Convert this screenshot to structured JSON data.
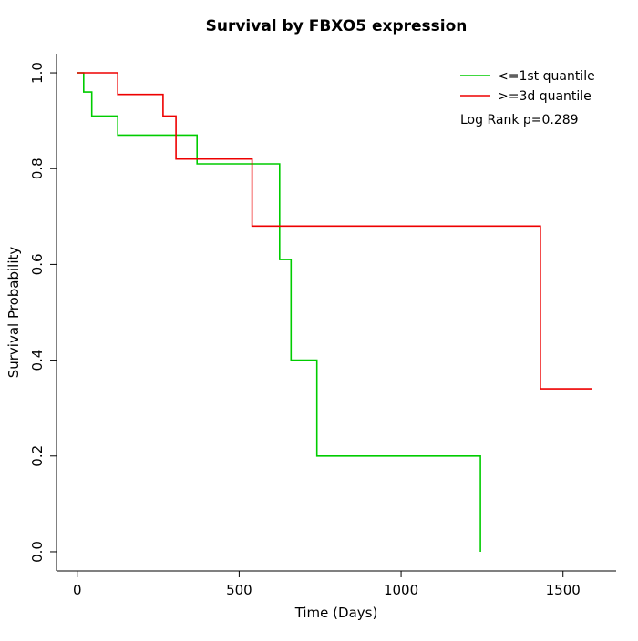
{
  "chart_data": {
    "type": "line",
    "step": "post",
    "title": "Survival by FBXO5 expression",
    "xlabel": "Time (Days)",
    "ylabel": "Survival Probability",
    "xlim": [
      0,
      1600
    ],
    "ylim": [
      0,
      1
    ],
    "xticks": [
      "0",
      "500",
      "1000",
      "1500"
    ],
    "yticks": [
      "0.0",
      "0.2",
      "0.4",
      "0.6",
      "0.8",
      "1.0"
    ],
    "grid": false,
    "legend_position": "top-right",
    "annotation": "Log Rank p=0.289",
    "series": [
      {
        "name": "<=1st quantile",
        "color": "#00CC00",
        "points": [
          [
            0,
            1.0
          ],
          [
            20,
            0.96
          ],
          [
            45,
            0.91
          ],
          [
            125,
            0.87
          ],
          [
            370,
            0.81
          ],
          [
            625,
            0.61
          ],
          [
            660,
            0.4
          ],
          [
            740,
            0.2
          ],
          [
            1245,
            0.0
          ]
        ],
        "end": 1245
      },
      {
        "name": ">=3d quantile",
        "color": "#EE0000",
        "points": [
          [
            0,
            1.0
          ],
          [
            125,
            0.955
          ],
          [
            265,
            0.91
          ],
          [
            305,
            0.82
          ],
          [
            540,
            0.68
          ],
          [
            1430,
            0.34
          ]
        ],
        "end": 1590
      }
    ]
  }
}
